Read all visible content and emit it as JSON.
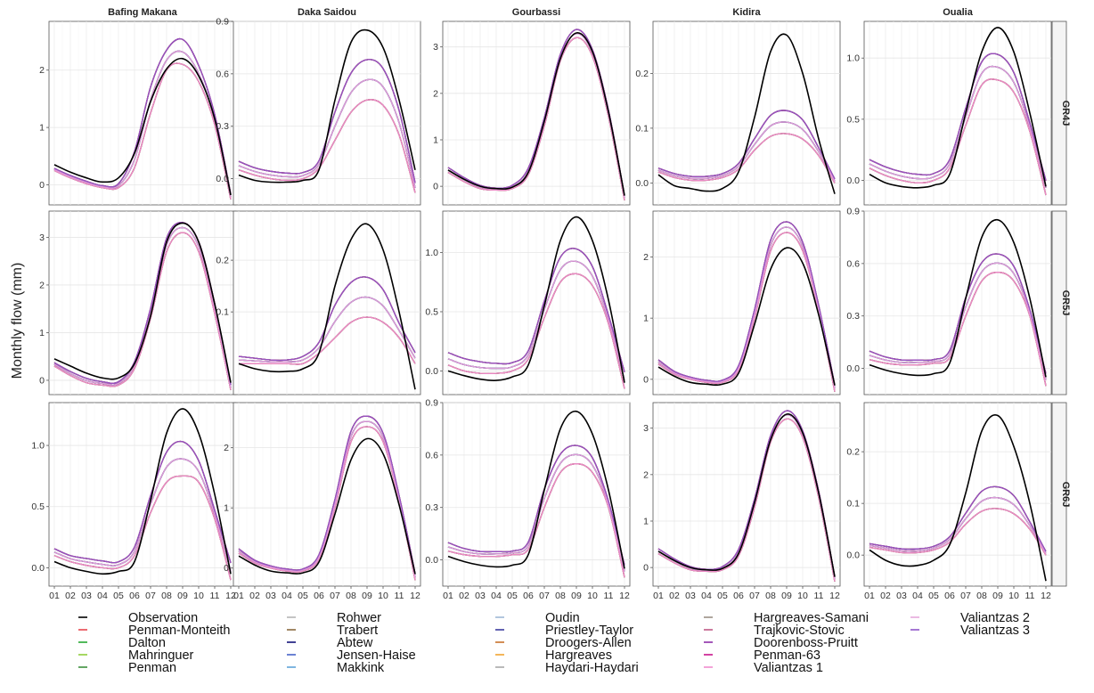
{
  "chart_data": {
    "type": "line",
    "ylabel": "Monthly flow (mm)",
    "xlabel": "",
    "x_ticks": [
      "01",
      "02",
      "03",
      "04",
      "05",
      "06",
      "07",
      "08",
      "09",
      "10",
      "11",
      "12"
    ],
    "stations": [
      "Bafing Makana",
      "Daka Saidou",
      "Gourbassi",
      "Kidira",
      "Oualia"
    ],
    "models": [
      "GR4J",
      "GR5J",
      "GR6J"
    ],
    "legend": {
      "placement": "bottom",
      "columns": [
        [
          {
            "name": "Observation",
            "color": "#000000"
          },
          {
            "name": "Penman-Monteith",
            "color": "#e8474f"
          },
          {
            "name": "Dalton",
            "color": "#27a832"
          },
          {
            "name": "Mahringuer",
            "color": "#8fce3a"
          },
          {
            "name": "Penman",
            "color": "#3d8f3d"
          }
        ],
        [
          {
            "name": "Rohwer",
            "color": "#b5b5b5"
          },
          {
            "name": "Trabert",
            "color": "#8a6b3f"
          },
          {
            "name": "Abtew",
            "color": "#12127a"
          },
          {
            "name": "Jensen-Haise",
            "color": "#4662c8"
          },
          {
            "name": "Makkink",
            "color": "#5fa3d9"
          }
        ],
        [
          {
            "name": "Oudin",
            "color": "#9fb8d6"
          },
          {
            "name": "Priestley-Taylor",
            "color": "#3c3c9e"
          },
          {
            "name": "Droogers-Allen",
            "color": "#c8722a"
          },
          {
            "name": "Hargreaves",
            "color": "#f2a431"
          },
          {
            "name": "Haydari-Haydari",
            "color": "#a9a9a9"
          }
        ],
        [
          {
            "name": "Hargreaves-Samani",
            "color": "#9b8f85"
          },
          {
            "name": "Trajkovic-Stovic",
            "color": "#c05a86"
          },
          {
            "name": "Doorenboss-Pruitt",
            "color": "#8e2ea8"
          },
          {
            "name": "Penman-63",
            "color": "#c8148c"
          },
          {
            "name": "Valiantzas 1",
            "color": "#f08ecf"
          }
        ],
        [
          {
            "name": "Valiantzas 2",
            "color": "#e6a8dc"
          },
          {
            "name": "Valiantzas 3",
            "color": "#8f56c9"
          }
        ]
      ]
    },
    "panels": [
      {
        "model": "GR4J",
        "station": "Bafing Makana",
        "ylim": [
          -0.35,
          2.85
        ],
        "yticks": [
          {
            "v": 0,
            "l": "0"
          },
          {
            "v": 1,
            "l": "1"
          },
          {
            "v": 2,
            "l": "2"
          }
        ],
        "obs": [
          0.35,
          0.22,
          0.12,
          0.05,
          0.12,
          0.55,
          1.45,
          2.02,
          2.2,
          1.9,
          1.15,
          -0.18
        ],
        "sim_range": [
          [
            0.25,
            0.12,
            0.02,
            -0.05,
            -0.05,
            0.3,
            1.25,
            2.0,
            2.1,
            1.8,
            1.05,
            -0.25
          ],
          [
            0.3,
            0.18,
            0.08,
            0.0,
            0.05,
            0.7,
            1.9,
            2.5,
            2.72,
            2.2,
            1.3,
            -0.12
          ]
        ]
      },
      {
        "model": "GR4J",
        "station": "Daka Saidou",
        "ylim": [
          -0.15,
          0.9
        ],
        "yticks": [
          {
            "v": 0,
            "l": "0.0"
          },
          {
            "v": 0.3,
            "l": "0.3"
          },
          {
            "v": 0.6,
            "l": "0.6"
          },
          {
            "v": 0.9,
            "l": "0.9"
          }
        ],
        "obs": [
          0.02,
          -0.01,
          -0.02,
          -0.02,
          -0.01,
          0.05,
          0.45,
          0.78,
          0.85,
          0.75,
          0.45,
          0.05
        ],
        "sim_range": [
          [
            0.05,
            0.02,
            0.0,
            -0.01,
            0.0,
            0.06,
            0.22,
            0.38,
            0.45,
            0.42,
            0.25,
            -0.08
          ],
          [
            0.12,
            0.08,
            0.06,
            0.05,
            0.05,
            0.12,
            0.45,
            0.7,
            0.78,
            0.72,
            0.45,
            0.0
          ]
        ]
      },
      {
        "model": "GR4J",
        "station": "Gourbassi",
        "ylim": [
          -0.4,
          3.55
        ],
        "yticks": [
          {
            "v": 0,
            "l": "0"
          },
          {
            "v": 1,
            "l": "1"
          },
          {
            "v": 2,
            "l": "2"
          },
          {
            "v": 3,
            "l": "3"
          }
        ],
        "obs": [
          0.35,
          0.15,
          0.0,
          -0.05,
          -0.02,
          0.3,
          1.4,
          2.75,
          3.3,
          2.9,
          1.6,
          -0.2
        ],
        "sim_range": [
          [
            0.3,
            0.1,
            -0.05,
            -0.08,
            -0.05,
            0.25,
            1.3,
            2.7,
            3.2,
            2.8,
            1.5,
            -0.3
          ],
          [
            0.45,
            0.22,
            0.05,
            -0.02,
            0.05,
            0.45,
            1.55,
            2.9,
            3.45,
            3.0,
            1.7,
            -0.15
          ]
        ]
      },
      {
        "model": "GR4J",
        "station": "Kidira",
        "ylim": [
          -0.04,
          0.295
        ],
        "yticks": [
          {
            "v": 0,
            "l": "0.0"
          },
          {
            "v": 0.1,
            "l": "0.1"
          },
          {
            "v": 0.2,
            "l": "0.2"
          }
        ],
        "obs": [
          0.015,
          -0.005,
          -0.01,
          -0.015,
          -0.01,
          0.02,
          0.12,
          0.24,
          0.27,
          0.2,
          0.08,
          -0.02
        ],
        "sim_range": [
          [
            0.02,
            0.01,
            0.005,
            0.005,
            0.01,
            0.025,
            0.06,
            0.085,
            0.09,
            0.08,
            0.05,
            0.0
          ],
          [
            0.03,
            0.02,
            0.015,
            0.015,
            0.02,
            0.04,
            0.09,
            0.14,
            0.15,
            0.13,
            0.07,
            0.01
          ]
        ]
      },
      {
        "model": "GR4J",
        "station": "Oualia",
        "ylim": [
          -0.2,
          1.3
        ],
        "yticks": [
          {
            "v": 0,
            "l": "0.0"
          },
          {
            "v": 0.5,
            "l": "0.5"
          },
          {
            "v": 1,
            "l": "1.0"
          }
        ],
        "obs": [
          0.05,
          -0.02,
          -0.05,
          -0.06,
          -0.04,
          0.05,
          0.55,
          1.05,
          1.25,
          1.05,
          0.55,
          -0.05
        ],
        "sim_range": [
          [
            0.1,
            0.04,
            0.0,
            -0.02,
            0.0,
            0.1,
            0.45,
            0.78,
            0.82,
            0.72,
            0.4,
            -0.12
          ],
          [
            0.2,
            0.14,
            0.1,
            0.08,
            0.08,
            0.2,
            0.65,
            1.05,
            1.12,
            0.95,
            0.5,
            0.05
          ]
        ]
      },
      {
        "model": "GR5J",
        "station": "Bafing Makana",
        "ylim": [
          -0.3,
          3.55
        ],
        "yticks": [
          {
            "v": 0,
            "l": "0"
          },
          {
            "v": 1,
            "l": "1"
          },
          {
            "v": 2,
            "l": "2"
          },
          {
            "v": 3,
            "l": "3"
          }
        ],
        "obs": [
          0.45,
          0.3,
          0.15,
          0.05,
          0.05,
          0.35,
          1.35,
          2.9,
          3.3,
          2.9,
          1.6,
          -0.05
        ],
        "sim_range": [
          [
            0.3,
            0.1,
            -0.05,
            -0.1,
            -0.1,
            0.25,
            1.3,
            2.7,
            3.1,
            2.7,
            1.4,
            -0.2
          ],
          [
            0.4,
            0.22,
            0.08,
            0.0,
            0.0,
            0.45,
            1.6,
            3.1,
            3.4,
            3.0,
            1.7,
            -0.05
          ]
        ]
      },
      {
        "model": "GR5J",
        "station": "Daka Saidou",
        "ylim": [
          -0.06,
          0.295
        ],
        "yticks": [
          {
            "v": 0.1,
            "l": "0.1"
          },
          {
            "v": 0.2,
            "l": "0.2"
          }
        ],
        "obs": [
          0.0,
          -0.01,
          -0.015,
          -0.015,
          -0.01,
          0.02,
          0.15,
          0.24,
          0.27,
          0.22,
          0.1,
          -0.05
        ],
        "sim_range": [
          [
            0.0,
            0.0,
            0.0,
            0.0,
            0.0,
            0.02,
            0.05,
            0.08,
            0.09,
            0.08,
            0.05,
            0.0
          ],
          [
            0.02,
            0.015,
            0.01,
            0.01,
            0.02,
            0.05,
            0.14,
            0.19,
            0.2,
            0.17,
            0.09,
            0.03
          ]
        ]
      },
      {
        "model": "GR5J",
        "station": "Gourbassi",
        "ylim": [
          -0.2,
          1.35
        ],
        "yticks": [
          {
            "v": 0,
            "l": "0.0"
          },
          {
            "v": 0.5,
            "l": "0.5"
          },
          {
            "v": 1,
            "l": "1.0"
          }
        ],
        "obs": [
          0.0,
          -0.04,
          -0.07,
          -0.08,
          -0.05,
          0.05,
          0.55,
          1.1,
          1.3,
          1.1,
          0.6,
          -0.1
        ],
        "sim_range": [
          [
            0.05,
            0.0,
            -0.02,
            -0.02,
            0.0,
            0.1,
            0.45,
            0.75,
            0.82,
            0.72,
            0.4,
            -0.15
          ],
          [
            0.2,
            0.15,
            0.12,
            0.1,
            0.1,
            0.2,
            0.65,
            1.05,
            1.12,
            0.95,
            0.5,
            0.05
          ]
        ]
      },
      {
        "model": "GR5J",
        "station": "Kidira",
        "ylim": [
          -0.25,
          2.75
        ],
        "yticks": [
          {
            "v": 0,
            "l": "0"
          },
          {
            "v": 1,
            "l": "1"
          },
          {
            "v": 2,
            "l": "2"
          }
        ],
        "obs": [
          0.2,
          0.05,
          -0.05,
          -0.08,
          -0.08,
          0.1,
          0.9,
          1.8,
          2.15,
          1.9,
          1.05,
          -0.1
        ],
        "sim_range": [
          [
            0.25,
            0.08,
            0.0,
            -0.05,
            -0.05,
            0.15,
            1.0,
            2.1,
            2.4,
            2.1,
            1.1,
            -0.2
          ],
          [
            0.35,
            0.15,
            0.05,
            0.0,
            0.0,
            0.25,
            1.2,
            2.35,
            2.65,
            2.3,
            1.25,
            -0.05
          ]
        ]
      },
      {
        "model": "GR5J",
        "station": "Oualia",
        "ylim": [
          -0.15,
          0.9
        ],
        "yticks": [
          {
            "v": 0,
            "l": "0.0"
          },
          {
            "v": 0.3,
            "l": "0.3"
          },
          {
            "v": 0.6,
            "l": "0.6"
          },
          {
            "v": 0.9,
            "l": "0.9"
          }
        ],
        "obs": [
          0.02,
          -0.01,
          -0.03,
          -0.04,
          -0.03,
          0.03,
          0.4,
          0.75,
          0.85,
          0.72,
          0.4,
          -0.05
        ],
        "sim_range": [
          [
            0.05,
            0.03,
            0.02,
            0.02,
            0.03,
            0.06,
            0.3,
            0.5,
            0.55,
            0.5,
            0.3,
            -0.1
          ],
          [
            0.12,
            0.08,
            0.06,
            0.06,
            0.06,
            0.12,
            0.45,
            0.65,
            0.7,
            0.62,
            0.35,
            0.0
          ]
        ]
      },
      {
        "model": "GR6J",
        "station": "Bafing Makana",
        "ylim": [
          -0.15,
          1.35
        ],
        "yticks": [
          {
            "v": 0,
            "l": "0.0"
          },
          {
            "v": 0.5,
            "l": "0.5"
          },
          {
            "v": 1,
            "l": "1.0"
          }
        ],
        "obs": [
          0.05,
          0.0,
          -0.03,
          -0.05,
          -0.03,
          0.05,
          0.55,
          1.1,
          1.3,
          1.1,
          0.6,
          -0.05
        ],
        "sim_range": [
          [
            0.1,
            0.05,
            0.02,
            0.0,
            0.0,
            0.1,
            0.45,
            0.7,
            0.75,
            0.7,
            0.4,
            -0.1
          ],
          [
            0.18,
            0.12,
            0.1,
            0.08,
            0.07,
            0.2,
            0.65,
            1.05,
            1.15,
            0.95,
            0.5,
            0.1
          ]
        ]
      },
      {
        "model": "GR6J",
        "station": "Daka Saidou",
        "ylim": [
          -0.3,
          2.75
        ],
        "yticks": [
          {
            "v": 0,
            "l": "0"
          },
          {
            "v": 1,
            "l": "1"
          },
          {
            "v": 2,
            "l": "2"
          }
        ],
        "obs": [
          0.2,
          0.05,
          -0.05,
          -0.08,
          -0.08,
          0.1,
          0.9,
          1.8,
          2.15,
          1.9,
          1.05,
          -0.1
        ],
        "sim_range": [
          [
            0.25,
            0.08,
            0.0,
            -0.05,
            -0.05,
            0.15,
            1.0,
            2.1,
            2.35,
            2.1,
            1.1,
            -0.2
          ],
          [
            0.35,
            0.15,
            0.05,
            0.0,
            0.0,
            0.25,
            1.2,
            2.35,
            2.6,
            2.3,
            1.25,
            -0.05
          ]
        ]
      },
      {
        "model": "GR6J",
        "station": "Gourbassi",
        "ylim": [
          -0.15,
          0.9
        ],
        "yticks": [
          {
            "v": 0,
            "l": "0.0"
          },
          {
            "v": 0.3,
            "l": "0.3"
          },
          {
            "v": 0.6,
            "l": "0.6"
          },
          {
            "v": 0.9,
            "l": "0.9"
          }
        ],
        "obs": [
          0.02,
          -0.01,
          -0.03,
          -0.04,
          -0.03,
          0.03,
          0.4,
          0.75,
          0.85,
          0.72,
          0.4,
          -0.05
        ],
        "sim_range": [
          [
            0.05,
            0.03,
            0.02,
            0.02,
            0.03,
            0.06,
            0.3,
            0.5,
            0.55,
            0.5,
            0.3,
            -0.1
          ],
          [
            0.12,
            0.08,
            0.06,
            0.06,
            0.06,
            0.12,
            0.45,
            0.65,
            0.7,
            0.62,
            0.35,
            0.0
          ]
        ]
      },
      {
        "model": "GR6J",
        "station": "Kidira",
        "ylim": [
          -0.4,
          3.55
        ],
        "yticks": [
          {
            "v": 0,
            "l": "0"
          },
          {
            "v": 1,
            "l": "1"
          },
          {
            "v": 2,
            "l": "2"
          },
          {
            "v": 3,
            "l": "3"
          }
        ],
        "obs": [
          0.35,
          0.15,
          0.0,
          -0.05,
          -0.02,
          0.3,
          1.4,
          2.75,
          3.3,
          2.9,
          1.6,
          -0.2
        ],
        "sim_range": [
          [
            0.3,
            0.1,
            -0.05,
            -0.08,
            -0.05,
            0.25,
            1.3,
            2.7,
            3.2,
            2.8,
            1.5,
            -0.3
          ],
          [
            0.45,
            0.22,
            0.05,
            -0.02,
            0.05,
            0.45,
            1.55,
            2.9,
            3.45,
            3.0,
            1.7,
            -0.15
          ]
        ]
      },
      {
        "model": "GR6J",
        "station": "Oualia",
        "ylim": [
          -0.06,
          0.295
        ],
        "yticks": [
          {
            "v": 0,
            "l": "0.0"
          },
          {
            "v": 0.1,
            "l": "0.1"
          },
          {
            "v": 0.2,
            "l": "0.2"
          }
        ],
        "obs": [
          0.01,
          -0.01,
          -0.02,
          -0.02,
          -0.01,
          0.02,
          0.12,
          0.24,
          0.27,
          0.21,
          0.1,
          -0.05
        ],
        "sim_range": [
          [
            0.015,
            0.01,
            0.005,
            0.005,
            0.01,
            0.025,
            0.06,
            0.085,
            0.09,
            0.08,
            0.05,
            0.0
          ],
          [
            0.025,
            0.02,
            0.015,
            0.015,
            0.02,
            0.04,
            0.09,
            0.14,
            0.15,
            0.13,
            0.07,
            0.01
          ]
        ]
      }
    ]
  }
}
